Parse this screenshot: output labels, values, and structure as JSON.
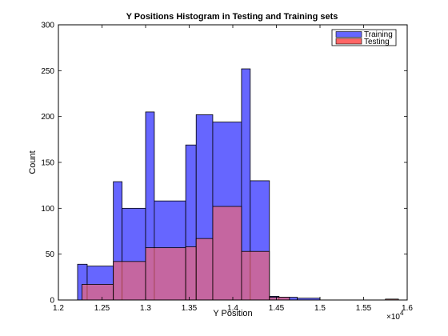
{
  "chart_data": {
    "type": "bar",
    "subtype": "overlaid-histogram",
    "title": "Y Positions Histogram in Testing and Training sets",
    "xlabel": "Y Position",
    "ylabel": "Count",
    "x_scale_label": "×10",
    "x_scale_exponent": "4",
    "xlim": [
      12000,
      16000
    ],
    "ylim": [
      0,
      300
    ],
    "xticks": [
      12000,
      12500,
      13000,
      13500,
      14000,
      14500,
      15000,
      15500,
      16000
    ],
    "xtick_labels": [
      "1.2",
      "1.25",
      "1.3",
      "1.35",
      "1.4",
      "1.45",
      "1.5",
      "1.55",
      "1.6"
    ],
    "yticks": [
      0,
      50,
      100,
      150,
      200,
      250,
      300
    ],
    "ytick_labels": [
      "0",
      "50",
      "100",
      "150",
      "200",
      "250",
      "300"
    ],
    "grid": false,
    "legend_position": "top-right",
    "series": [
      {
        "name": "Training",
        "color": "#6666ff",
        "bins": [
          {
            "x0": 12220,
            "x1": 12330,
            "value": 39
          },
          {
            "x0": 12330,
            "x1": 12630,
            "value": 37
          },
          {
            "x0": 12630,
            "x1": 12730,
            "value": 129
          },
          {
            "x0": 12730,
            "x1": 13000,
            "value": 100
          },
          {
            "x0": 13000,
            "x1": 13100,
            "value": 205
          },
          {
            "x0": 13100,
            "x1": 13460,
            "value": 108
          },
          {
            "x0": 13460,
            "x1": 13580,
            "value": 169
          },
          {
            "x0": 13580,
            "x1": 13770,
            "value": 202
          },
          {
            "x0": 13770,
            "x1": 14100,
            "value": 194
          },
          {
            "x0": 14100,
            "x1": 14200,
            "value": 252
          },
          {
            "x0": 14200,
            "x1": 14420,
            "value": 130
          },
          {
            "x0": 14420,
            "x1": 14530,
            "value": 4
          },
          {
            "x0": 14530,
            "x1": 14740,
            "value": 3
          },
          {
            "x0": 14740,
            "x1": 15000,
            "value": 2
          }
        ]
      },
      {
        "name": "Testing",
        "color": "#ff6666",
        "bins": [
          {
            "x0": 12270,
            "x1": 12630,
            "value": 17
          },
          {
            "x0": 12630,
            "x1": 13000,
            "value": 42
          },
          {
            "x0": 13000,
            "x1": 13460,
            "value": 57
          },
          {
            "x0": 13460,
            "x1": 13580,
            "value": 58
          },
          {
            "x0": 13580,
            "x1": 13770,
            "value": 67
          },
          {
            "x0": 13770,
            "x1": 14100,
            "value": 102
          },
          {
            "x0": 14100,
            "x1": 14420,
            "value": 53
          },
          {
            "x0": 14420,
            "x1": 14650,
            "value": 3
          },
          {
            "x0": 15750,
            "x1": 15900,
            "value": 1
          }
        ]
      }
    ]
  }
}
